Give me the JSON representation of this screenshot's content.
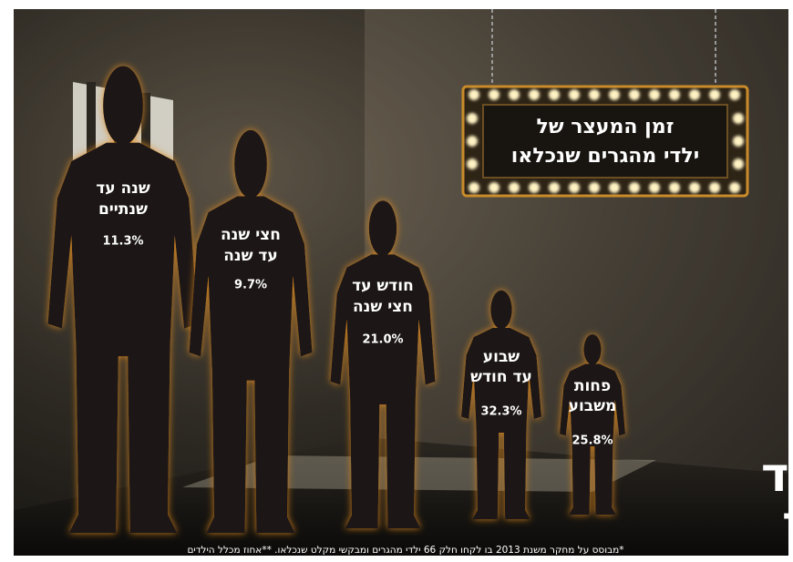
{
  "title": {
    "lines": [
      "זמן המעצר של",
      "ילדי מהגרים שנכלאו"
    ]
  },
  "items": [
    {
      "label": [
        "שנה עד",
        "שנתיים"
      ],
      "value": "11.3%"
    },
    {
      "label": [
        "חצי שנה",
        "עד שנה"
      ],
      "value": "9.7%"
    },
    {
      "label": [
        "חודש עד",
        "חצי שנה"
      ],
      "value": "21.0%"
    },
    {
      "label": [
        "שבוע",
        "עד חודש"
      ],
      "value": "32.3%"
    },
    {
      "label": [
        "פחות",
        "משבוע"
      ],
      "value": "25.8%"
    }
  ],
  "logo": [
    "ילד",
    "אסור"
  ],
  "footnote": "*מבוסס על מחקר משנת 2013 בו לקחו חלק 66 ילדי מהגרים ומבקשי מקלט שנכלאו. **אחוז מכלל הילדים"
}
